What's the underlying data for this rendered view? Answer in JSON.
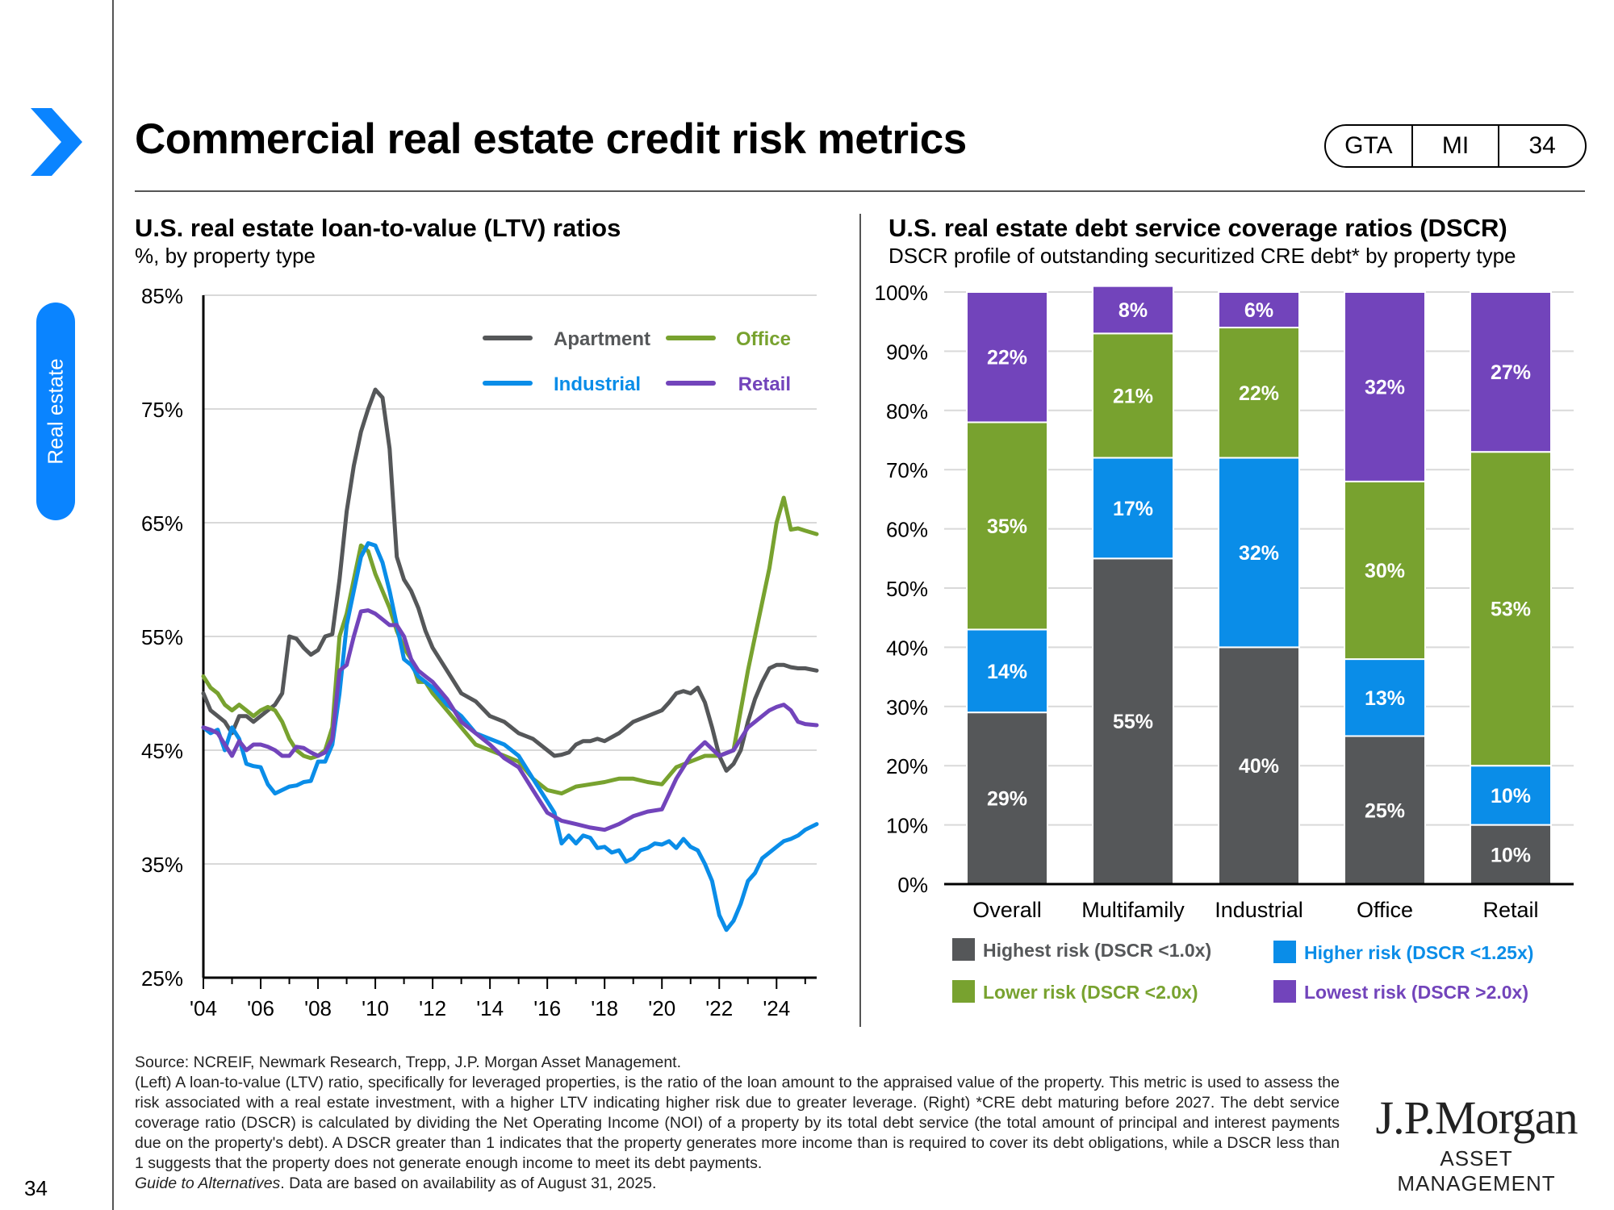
{
  "header": {
    "title": "Commercial real estate credit risk metrics",
    "pager": [
      "GTA",
      "MI",
      "34"
    ],
    "section_tab": "Real estate"
  },
  "left_chart": {
    "title": "U.S. real estate loan-to-value (LTV) ratios",
    "subtitle": "%, by property type"
  },
  "right_chart": {
    "title": "U.S. real estate debt service coverage ratios (DSCR)",
    "subtitle": "DSCR profile of outstanding securitized CRE debt* by property type"
  },
  "chart_data": [
    {
      "type": "line",
      "title": "U.S. real estate loan-to-value (LTV) ratios",
      "subtitle": "%, by property type",
      "ylim": [
        25,
        85
      ],
      "xlim": [
        2004,
        2025.4
      ],
      "y_ticks": [
        "25%",
        "35%",
        "45%",
        "55%",
        "65%",
        "75%",
        "85%"
      ],
      "y_tick_values": [
        25,
        35,
        45,
        55,
        65,
        75,
        85
      ],
      "x_ticks": [
        "'04",
        "'06",
        "'08",
        "'10",
        "'12",
        "'14",
        "'16",
        "'18",
        "'20",
        "'22",
        "'24"
      ],
      "x_tick_values": [
        2004,
        2006,
        2008,
        2010,
        2012,
        2014,
        2016,
        2018,
        2020,
        2022,
        2024
      ],
      "grid": true,
      "legend_position": "top-right",
      "series": [
        {
          "name": "Apartment",
          "color": "#555759",
          "x": [
            2004,
            2004.25,
            2004.5,
            2004.75,
            2005,
            2005.25,
            2005.5,
            2005.75,
            2006,
            2006.25,
            2006.5,
            2006.75,
            2007,
            2007.25,
            2007.5,
            2007.75,
            2008,
            2008.25,
            2008.5,
            2008.75,
            2009,
            2009.25,
            2009.5,
            2009.75,
            2010,
            2010.25,
            2010.5,
            2010.75,
            2011,
            2011.25,
            2011.5,
            2011.75,
            2012,
            2012.5,
            2013,
            2013.5,
            2014,
            2014.5,
            2015,
            2015.5,
            2016,
            2016.25,
            2016.5,
            2016.75,
            2017,
            2017.25,
            2017.5,
            2017.75,
            2018,
            2018.5,
            2019,
            2019.5,
            2020,
            2020.25,
            2020.5,
            2020.75,
            2021,
            2021.25,
            2021.5,
            2021.75,
            2022,
            2022.25,
            2022.5,
            2022.75,
            2023,
            2023.25,
            2023.5,
            2023.75,
            2024,
            2024.25,
            2024.5,
            2024.75,
            2025,
            2025.4
          ],
          "values": [
            50,
            48.5,
            48,
            47.5,
            46.5,
            48,
            48,
            47.5,
            48,
            48.5,
            49,
            50,
            55,
            54.8,
            54,
            53.4,
            53.8,
            55,
            55.2,
            60,
            66,
            70,
            73,
            75,
            76.7,
            76,
            71.5,
            62,
            60,
            59,
            57.5,
            55.5,
            54,
            52,
            50,
            49.3,
            48,
            47.5,
            46.5,
            46,
            45,
            44.5,
            44.6,
            44.8,
            45.5,
            45.8,
            45.8,
            46,
            45.8,
            46.5,
            47.5,
            48,
            48.5,
            49.2,
            50,
            50.2,
            50,
            50.5,
            49.2,
            47,
            44.5,
            43.2,
            43.8,
            45,
            47.5,
            49.5,
            51,
            52.2,
            52.5,
            52.5,
            52.3,
            52.2,
            52.2,
            52
          ]
        },
        {
          "name": "Office",
          "color": "#78a22f",
          "x": [
            2004,
            2004.25,
            2004.5,
            2004.75,
            2005,
            2005.25,
            2005.5,
            2005.75,
            2006,
            2006.25,
            2006.5,
            2006.75,
            2007,
            2007.25,
            2007.5,
            2007.75,
            2008,
            2008.25,
            2008.5,
            2008.75,
            2009,
            2009.25,
            2009.5,
            2009.75,
            2010,
            2010.25,
            2010.5,
            2010.75,
            2011,
            2011.25,
            2011.5,
            2011.75,
            2012,
            2012.5,
            2013,
            2013.5,
            2014,
            2014.5,
            2015,
            2015.5,
            2016,
            2016.5,
            2017,
            2017.5,
            2018,
            2018.5,
            2019,
            2019.5,
            2020,
            2020.5,
            2021,
            2021.5,
            2022,
            2022.5,
            2023,
            2023.25,
            2023.5,
            2023.75,
            2024,
            2024.25,
            2024.5,
            2024.75,
            2025,
            2025.4
          ],
          "values": [
            51.5,
            50.5,
            50,
            49,
            48.5,
            49,
            48.5,
            48,
            48.5,
            48.8,
            48.5,
            47.5,
            46,
            45,
            44.5,
            44.3,
            44.5,
            45,
            47,
            55,
            57,
            60,
            63,
            62.5,
            60.5,
            59,
            57.5,
            55.5,
            54,
            53,
            51,
            51,
            50,
            48.5,
            47,
            45.5,
            45,
            44.5,
            44,
            42.5,
            41.5,
            41.2,
            41.8,
            42,
            42.2,
            42.5,
            42.5,
            42.2,
            42,
            43.5,
            44,
            44.5,
            44.5,
            45,
            52,
            55,
            58,
            61,
            65,
            67.2,
            64.4,
            64.5,
            64.3,
            64
          ]
        },
        {
          "name": "Industrial",
          "color": "#0a8de8",
          "x": [
            2004,
            2004.25,
            2004.5,
            2004.75,
            2005,
            2005.25,
            2005.5,
            2005.75,
            2006,
            2006.25,
            2006.5,
            2006.75,
            2007,
            2007.25,
            2007.5,
            2007.75,
            2008,
            2008.25,
            2008.5,
            2008.75,
            2009,
            2009.25,
            2009.5,
            2009.75,
            2010,
            2010.25,
            2010.5,
            2010.75,
            2011,
            2011.25,
            2011.5,
            2011.75,
            2012,
            2012.5,
            2013,
            2013.5,
            2014,
            2014.5,
            2015,
            2015.5,
            2016,
            2016.25,
            2016.5,
            2016.75,
            2017,
            2017.25,
            2017.5,
            2017.75,
            2018,
            2018.25,
            2018.5,
            2018.75,
            2019,
            2019.25,
            2019.5,
            2019.75,
            2020,
            2020.25,
            2020.5,
            2020.75,
            2021,
            2021.25,
            2021.5,
            2021.75,
            2022,
            2022.25,
            2022.5,
            2022.75,
            2023,
            2023.25,
            2023.5,
            2023.75,
            2024,
            2024.25,
            2024.5,
            2024.75,
            2025,
            2025.4
          ],
          "values": [
            47,
            46.5,
            46.8,
            45,
            47,
            46,
            43.8,
            43.6,
            43.5,
            42,
            41.2,
            41.5,
            41.8,
            41.9,
            42.2,
            42.3,
            44,
            44,
            45.5,
            50,
            56,
            59,
            62,
            63.2,
            63,
            61.5,
            59,
            56,
            53,
            52.5,
            51.5,
            51,
            50.5,
            49,
            48,
            46.5,
            46,
            45.5,
            44.5,
            42.5,
            40.5,
            39.5,
            36.8,
            37.5,
            36.8,
            37.5,
            37.3,
            36.4,
            36.5,
            36,
            36.2,
            35.2,
            35.5,
            36.2,
            36.4,
            36.8,
            36.7,
            37,
            36.4,
            37.2,
            36.5,
            36.2,
            35,
            33.5,
            30.5,
            29.2,
            30,
            31.5,
            33.5,
            34.2,
            35.5,
            36,
            36.5,
            37,
            37.2,
            37.5,
            38,
            38.5
          ]
        },
        {
          "name": "Retail",
          "color": "#7244bb",
          "x": [
            2004,
            2004.25,
            2004.5,
            2004.75,
            2005,
            2005.25,
            2005.5,
            2005.75,
            2006,
            2006.25,
            2006.5,
            2006.75,
            2007,
            2007.25,
            2007.5,
            2007.75,
            2008,
            2008.25,
            2008.5,
            2008.75,
            2009,
            2009.25,
            2009.5,
            2009.75,
            2010,
            2010.25,
            2010.5,
            2010.75,
            2011,
            2011.25,
            2011.5,
            2011.75,
            2012,
            2012.5,
            2013,
            2013.5,
            2014,
            2014.5,
            2015,
            2015.5,
            2016,
            2016.5,
            2017,
            2017.5,
            2018,
            2018.5,
            2019,
            2019.5,
            2020,
            2020.5,
            2021,
            2021.5,
            2022,
            2022.5,
            2023,
            2023.25,
            2023.5,
            2023.75,
            2024,
            2024.25,
            2024.5,
            2024.75,
            2025,
            2025.4
          ],
          "values": [
            47,
            46.8,
            46.5,
            45.5,
            44.5,
            45.8,
            45,
            45.5,
            45.5,
            45.3,
            45,
            44.5,
            44.5,
            45.3,
            45.2,
            44.8,
            44.5,
            44.8,
            46,
            52,
            52.5,
            55,
            57.2,
            57.3,
            57,
            56.5,
            56,
            56,
            55,
            53,
            52,
            51.5,
            51,
            49.5,
            47.5,
            46.5,
            45.5,
            44.3,
            43.5,
            41.5,
            39.5,
            38.8,
            38.5,
            38.2,
            38,
            38.5,
            39.2,
            39.6,
            39.8,
            42.5,
            44.5,
            45.7,
            44.5,
            45,
            47,
            47.5,
            48,
            48.5,
            48.8,
            49,
            48.5,
            47.5,
            47.3,
            47.2
          ]
        }
      ]
    },
    {
      "type": "bar",
      "stacked": true,
      "title": "U.S. real estate debt service coverage ratios (DSCR)",
      "subtitle": "DSCR profile of outstanding securitized CRE debt* by property type",
      "categories": [
        "Overall",
        "Multifamily",
        "Industrial",
        "Office",
        "Retail"
      ],
      "ylim": [
        0,
        100
      ],
      "y_ticks": [
        "0%",
        "10%",
        "20%",
        "30%",
        "40%",
        "50%",
        "60%",
        "70%",
        "80%",
        "90%",
        "100%"
      ],
      "y_tick_values": [
        0,
        10,
        20,
        30,
        40,
        50,
        60,
        70,
        80,
        90,
        100
      ],
      "grid": true,
      "legend_position": "bottom",
      "series": [
        {
          "name": "Highest risk (DSCR <1.0x)",
          "color": "#555759",
          "values": [
            29,
            55,
            40,
            25,
            10
          ],
          "labels": [
            "29%",
            "55%",
            "40%",
            "25%",
            "10%"
          ]
        },
        {
          "name": "Higher risk (DSCR <1.25x)",
          "color": "#0a8de8",
          "values": [
            14,
            17,
            32,
            13,
            10
          ],
          "labels": [
            "14%",
            "17%",
            "32%",
            "13%",
            "10%"
          ]
        },
        {
          "name": "Lower risk (DSCR <2.0x)",
          "color": "#78a22f",
          "values": [
            35,
            21,
            22,
            30,
            53
          ],
          "labels": [
            "35%",
            "21%",
            "22%",
            "30%",
            "53%"
          ]
        },
        {
          "name": "Lowest risk (DSCR >2.0x)",
          "color": "#7244bb",
          "values": [
            22,
            8,
            6,
            32,
            27
          ],
          "labels": [
            "22%",
            "8%",
            "6%",
            "32%",
            "27%"
          ]
        }
      ]
    }
  ],
  "footnotes": {
    "source": "Source: NCREIF, Newmark Research, Trepp, J.P. Morgan Asset Management.",
    "body": "(Left) A loan-to-value (LTV) ratio, specifically for leveraged properties, is the ratio of the loan amount to the appraised value of the property. This metric is used to assess the risk associated with a real estate investment, with a higher LTV indicating higher risk due to greater leverage. (Right) *CRE debt maturing before 2027. The debt service coverage ratio (DSCR) is calculated by dividing the Net Operating Income (NOI) of a property by its total debt service (the total amount of principal and interest payments due on the property's debt). A DSCR greater than 1 indicates that the property generates more income than is required to cover its debt obligations, while a DSCR less than 1 suggests that the property does not generate enough income to meet its debt payments.",
    "guide_title": "Guide to Alternatives",
    "guide_rest": ". Data are based on availability as of August 31, 2025."
  },
  "page_number": "34",
  "logo": {
    "line1": "J.P.Morgan",
    "line2": "ASSET MANAGEMENT"
  },
  "colors": {
    "accent": "#0a84ff",
    "apartment": "#555759",
    "office": "#78a22f",
    "industrial": "#0a8de8",
    "retail": "#7244bb"
  }
}
